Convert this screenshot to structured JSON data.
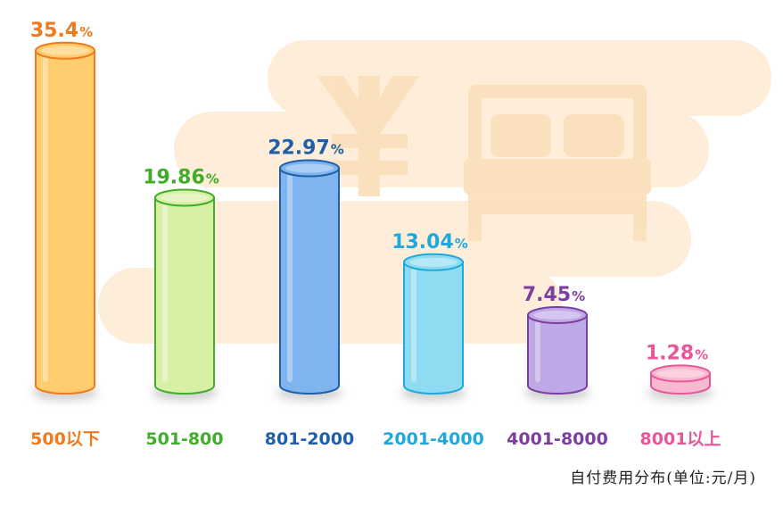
{
  "chart_data": {
    "type": "bar",
    "categories": [
      "500以下",
      "501-800",
      "801-2000",
      "2001-4000",
      "4001-8000",
      "8001以上"
    ],
    "values": [
      35.4,
      19.86,
      22.97,
      13.04,
      7.45,
      1.28
    ],
    "value_labels": [
      "35.4",
      "19.86",
      "22.97",
      "13.04",
      "7.45",
      "1.28"
    ],
    "unit_suffix": "%",
    "colors": [
      "#f07a1e",
      "#3fae2a",
      "#1f5ea8",
      "#1fa8dc",
      "#7a3fa0",
      "#e8569a"
    ],
    "bar_fills": [
      "#ffcc6e",
      "#d8f0a6",
      "#7fb4ee",
      "#8fdcf2",
      "#bfa8e6",
      "#f9b8d0"
    ],
    "grid": false,
    "legend": "none"
  },
  "footnote": "自付费用分布(单位:元/月)",
  "background_icons": [
    "yen-icon",
    "bed-icon"
  ]
}
